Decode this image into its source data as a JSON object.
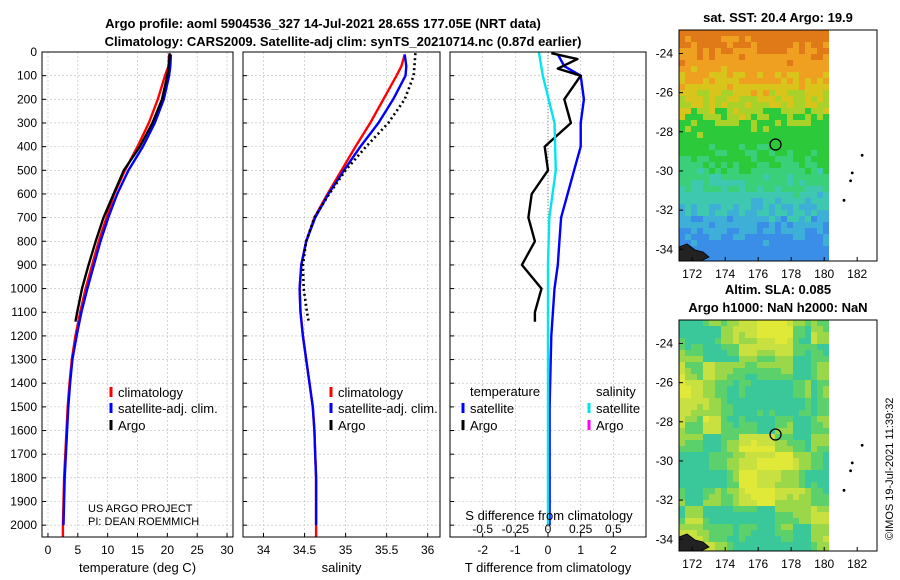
{
  "header": {
    "title_line1": "Argo profile: aoml 5904536_327 14-Jul-2021 28.65S 177.05E (NRT data)",
    "title_line2": "Climatology: CARS2009. Satellite-adj clim: synTS_20210714.nc (0.87d earlier)"
  },
  "colors": {
    "climatology": "#ff0000",
    "satellite": "#0000ff",
    "argo": "#000000",
    "sat_sal": "#00e5ee",
    "argo_sal": "#ff00ff"
  },
  "chart_data": [
    {
      "type": "line",
      "id": "temperature",
      "xlabel": "temperature (deg C)",
      "xlim": [
        -1,
        31
      ],
      "ylim": [
        2050,
        0
      ],
      "xticks": [
        0,
        5,
        10,
        15,
        20,
        25,
        30
      ],
      "yticks": [
        0,
        100,
        200,
        300,
        400,
        500,
        600,
        700,
        800,
        900,
        1000,
        1100,
        1200,
        1300,
        1400,
        1500,
        1600,
        1700,
        1800,
        1900,
        2000
      ],
      "series": [
        {
          "name": "climatology",
          "color": "red",
          "points": [
            [
              20.3,
              10
            ],
            [
              20.2,
              60
            ],
            [
              19.6,
              100
            ],
            [
              18.4,
              200
            ],
            [
              16.9,
              300
            ],
            [
              15.0,
              400
            ],
            [
              12.9,
              500
            ],
            [
              11.1,
              600
            ],
            [
              9.8,
              700
            ],
            [
              8.5,
              800
            ],
            [
              7.4,
              900
            ],
            [
              6.3,
              1000
            ],
            [
              5.4,
              1100
            ],
            [
              4.6,
              1200
            ],
            [
              4.0,
              1300
            ],
            [
              3.6,
              1400
            ],
            [
              3.3,
              1500
            ],
            [
              3.1,
              1600
            ],
            [
              2.9,
              1700
            ],
            [
              2.7,
              1800
            ],
            [
              2.6,
              1900
            ],
            [
              2.5,
              2000
            ],
            [
              2.5,
              2050
            ]
          ]
        },
        {
          "name": "satellite-adj. clim.",
          "color": "blue",
          "points": [
            [
              20.6,
              10
            ],
            [
              20.5,
              60
            ],
            [
              20.3,
              100
            ],
            [
              19.4,
              200
            ],
            [
              17.9,
              300
            ],
            [
              15.9,
              400
            ],
            [
              13.5,
              500
            ],
            [
              11.6,
              600
            ],
            [
              10.1,
              700
            ],
            [
              8.8,
              800
            ],
            [
              7.7,
              900
            ],
            [
              6.6,
              1000
            ],
            [
              5.6,
              1100
            ],
            [
              4.8,
              1200
            ],
            [
              4.1,
              1300
            ],
            [
              3.7,
              1400
            ],
            [
              3.4,
              1500
            ],
            [
              3.2,
              1600
            ],
            [
              3.0,
              1700
            ],
            [
              2.8,
              1800
            ],
            [
              2.7,
              1900
            ],
            [
              2.6,
              2000
            ]
          ]
        },
        {
          "name": "Argo",
          "color": "black",
          "points": [
            [
              20.4,
              5
            ],
            [
              20.3,
              50
            ],
            [
              20.0,
              100
            ],
            [
              19.1,
              200
            ],
            [
              17.5,
              300
            ],
            [
              15.4,
              400
            ],
            [
              12.7,
              500
            ],
            [
              11.0,
              600
            ],
            [
              9.3,
              700
            ],
            [
              8.0,
              800
            ],
            [
              6.8,
              900
            ],
            [
              5.7,
              1000
            ],
            [
              4.9,
              1100
            ],
            [
              4.6,
              1140
            ]
          ]
        }
      ],
      "legend": [
        "climatology",
        "satellite-adj. clim.",
        "Argo"
      ],
      "annotation_line1": "US ARGO PROJECT",
      "annotation_line2": "PI: DEAN ROEMMICH"
    },
    {
      "type": "line",
      "id": "salinity",
      "xlabel": "salinity",
      "xlim": [
        33.75,
        36.15
      ],
      "ylim": [
        2050,
        0
      ],
      "xticks": [
        34,
        34.5,
        35,
        35.5,
        36
      ],
      "series": [
        {
          "name": "climatology",
          "color": "red",
          "points": [
            [
              35.72,
              10
            ],
            [
              35.68,
              60
            ],
            [
              35.62,
              100
            ],
            [
              35.46,
              200
            ],
            [
              35.3,
              300
            ],
            [
              35.12,
              400
            ],
            [
              34.95,
              500
            ],
            [
              34.78,
              600
            ],
            [
              34.62,
              700
            ],
            [
              34.52,
              800
            ],
            [
              34.46,
              900
            ],
            [
              34.44,
              1000
            ],
            [
              34.45,
              1100
            ],
            [
              34.48,
              1200
            ],
            [
              34.52,
              1300
            ],
            [
              34.56,
              1400
            ],
            [
              34.6,
              1500
            ],
            [
              34.62,
              1600
            ],
            [
              34.63,
              1700
            ],
            [
              34.64,
              1800
            ],
            [
              34.64,
              1900
            ],
            [
              34.64,
              2000
            ],
            [
              34.64,
              2050
            ]
          ]
        },
        {
          "name": "satellite-adj. clim.",
          "color": "blue",
          "points": [
            [
              35.72,
              10
            ],
            [
              35.74,
              60
            ],
            [
              35.73,
              100
            ],
            [
              35.58,
              200
            ],
            [
              35.4,
              300
            ],
            [
              35.18,
              400
            ],
            [
              34.98,
              500
            ],
            [
              34.79,
              600
            ],
            [
              34.63,
              700
            ],
            [
              34.52,
              800
            ],
            [
              34.46,
              900
            ],
            [
              34.44,
              1000
            ],
            [
              34.45,
              1100
            ],
            [
              34.48,
              1200
            ],
            [
              34.52,
              1300
            ],
            [
              34.56,
              1400
            ],
            [
              34.6,
              1500
            ],
            [
              34.62,
              1600
            ],
            [
              34.63,
              1700
            ],
            [
              34.64,
              1800
            ],
            [
              34.64,
              1900
            ],
            [
              34.64,
              2000
            ]
          ]
        },
        {
          "name": "Argo",
          "color": "black",
          "dashed": true,
          "points": [
            [
              35.85,
              5
            ],
            [
              35.83,
              100
            ],
            [
              35.72,
              200
            ],
            [
              35.52,
              300
            ],
            [
              35.25,
              400
            ],
            [
              35.0,
              500
            ],
            [
              34.8,
              600
            ],
            [
              34.62,
              700
            ],
            [
              34.52,
              800
            ],
            [
              34.48,
              900
            ],
            [
              34.49,
              1000
            ],
            [
              34.53,
              1100
            ],
            [
              34.55,
              1140
            ]
          ]
        }
      ],
      "legend": [
        "climatology",
        "satellite-adj. clim.",
        "Argo"
      ]
    },
    {
      "type": "line",
      "id": "differences",
      "xlabel": "T difference from climatology",
      "xlabel_top": "S difference from climatology",
      "xlim": [
        -3,
        3
      ],
      "ylim": [
        2050,
        0
      ],
      "xticks": [
        -2,
        -1,
        0,
        1,
        2
      ],
      "sticks": [
        "-0.5",
        "-0.25",
        "0",
        "0.25",
        "0.5"
      ],
      "series": [
        {
          "name": "satellite",
          "group": "temperature",
          "color": "blue",
          "points": [
            [
              0.3,
              10
            ],
            [
              0.5,
              60
            ],
            [
              1.0,
              100
            ],
            [
              1.1,
              200
            ],
            [
              1.0,
              300
            ],
            [
              1.0,
              400
            ],
            [
              0.8,
              500
            ],
            [
              0.6,
              600
            ],
            [
              0.4,
              700
            ],
            [
              0.35,
              800
            ],
            [
              0.3,
              900
            ],
            [
              0.2,
              1000
            ],
            [
              0.1,
              1200
            ],
            [
              0.05,
              1500
            ],
            [
              0.05,
              2000
            ]
          ]
        },
        {
          "name": "Argo",
          "group": "temperature",
          "color": "black",
          "points": [
            [
              0.1,
              5
            ],
            [
              0.9,
              30
            ],
            [
              0.3,
              70
            ],
            [
              1.0,
              100
            ],
            [
              0.5,
              200
            ],
            [
              0.7,
              300
            ],
            [
              -0.1,
              400
            ],
            [
              0.0,
              500
            ],
            [
              -0.5,
              600
            ],
            [
              -0.6,
              700
            ],
            [
              -0.4,
              800
            ],
            [
              -0.8,
              900
            ],
            [
              -0.2,
              1000
            ],
            [
              -0.4,
              1100
            ],
            [
              -0.4,
              1140
            ]
          ]
        },
        {
          "name": "satellite",
          "group": "salinity",
          "color": "cyan",
          "points": [
            [
              -0.07,
              0
            ],
            [
              -0.04,
              100
            ],
            [
              0.05,
              300
            ],
            [
              0.06,
              500
            ],
            [
              0.01,
              700
            ],
            [
              0.0,
              900
            ],
            [
              0.0,
              2000
            ]
          ]
        },
        {
          "name": "Argo",
          "group": "salinity",
          "color": "magenta",
          "points": []
        }
      ],
      "legend_temperature_title": "temperature",
      "legend_salinity_title": "salinity",
      "legend_items": [
        "satellite",
        "Argo"
      ]
    },
    {
      "type": "heatmap",
      "id": "sst_map",
      "title": "sat. SST: 20.4 Argo: 19.9",
      "xticks": [
        172,
        174,
        176,
        178,
        180,
        182
      ],
      "yticks": [
        -24,
        -26,
        -28,
        -30,
        -32,
        -34
      ],
      "xlim": [
        171.2,
        183.2
      ],
      "ylim": [
        -34.6,
        -22.8
      ],
      "profile_location": [
        177.05,
        -28.65
      ]
    },
    {
      "type": "heatmap",
      "id": "sla_map",
      "title_line1": "Altim. SLA: 0.085",
      "title_line2": "Argo h1000: NaN h2000: NaN",
      "xticks": [
        172,
        174,
        176,
        178,
        180,
        182
      ],
      "yticks": [
        -24,
        -26,
        -28,
        -30,
        -32,
        -34
      ],
      "xlim": [
        171.2,
        183.2
      ],
      "ylim": [
        -34.6,
        -22.8
      ],
      "profile_location": [
        177.05,
        -28.65
      ]
    }
  ],
  "footer": {
    "credit": "©IMOS 19-Jul-2021 11:39:32"
  }
}
